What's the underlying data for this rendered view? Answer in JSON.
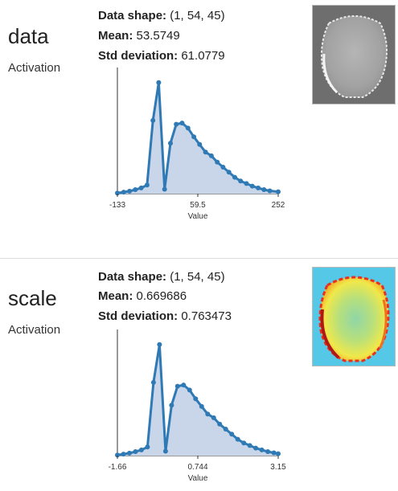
{
  "layers": [
    {
      "name": "data",
      "type": "Activation",
      "stats": {
        "shape_label": "Data shape:",
        "shape_value": "(1, 54, 45)",
        "mean_label": "Mean:",
        "mean_value": "53.5749",
        "std_label": "Std deviation:",
        "std_value": "61.0779"
      },
      "thumbnail": {
        "colormap": "gray",
        "background": "#6e6e6e"
      },
      "chart_data": {
        "type": "area",
        "xlabel": "Value",
        "ticks": [
          "-133",
          "59.5",
          "252"
        ],
        "x_range": [
          -133,
          252
        ],
        "series_color": "#2f79b5",
        "fill_color": "#c9d6ea",
        "x": [
          -133,
          -118,
          -104,
          -90,
          -76,
          -62,
          -48,
          -34,
          -20,
          -6,
          8,
          22,
          36,
          50,
          64,
          78,
          92,
          106,
          120,
          134,
          148,
          162,
          176,
          190,
          204,
          218,
          232,
          252
        ],
        "y": [
          0.5,
          1.2,
          2.0,
          3.2,
          4.5,
          6.8,
          58,
          88,
          3.5,
          40,
          55,
          56,
          52,
          45,
          39,
          33,
          30,
          25,
          21,
          17,
          13,
          10,
          8,
          6,
          4.5,
          3.2,
          2.2,
          1.5
        ],
        "y_max": 100
      }
    },
    {
      "name": "scale",
      "type": "Activation",
      "stats": {
        "shape_label": "Data shape:",
        "shape_value": "(1, 54, 45)",
        "mean_label": "Mean:",
        "mean_value": "0.669686",
        "std_label": "Std deviation:",
        "std_value": "0.763473"
      },
      "thumbnail": {
        "colormap": "jet",
        "background": "#55c8e8"
      },
      "chart_data": {
        "type": "area",
        "xlabel": "Value",
        "ticks": [
          "-1.66",
          "0.744",
          "3.15"
        ],
        "x_range": [
          -1.66,
          3.15
        ],
        "series_color": "#2f79b5",
        "fill_color": "#c9d6ea",
        "x": [
          -1.66,
          -1.48,
          -1.3,
          -1.12,
          -0.94,
          -0.76,
          -0.58,
          -0.4,
          -0.22,
          -0.04,
          0.14,
          0.32,
          0.5,
          0.68,
          0.86,
          1.04,
          1.22,
          1.4,
          1.58,
          1.76,
          1.94,
          2.12,
          2.3,
          2.48,
          2.66,
          2.84,
          3.02,
          3.15
        ],
        "y": [
          0.5,
          1.2,
          2.0,
          3.2,
          4.5,
          6.8,
          58,
          88,
          3.5,
          40,
          55,
          56,
          52,
          45,
          39,
          33,
          30,
          25,
          21,
          17,
          13,
          10,
          8,
          6,
          4.5,
          3.2,
          2.2,
          1.5
        ],
        "y_max": 100
      }
    }
  ]
}
